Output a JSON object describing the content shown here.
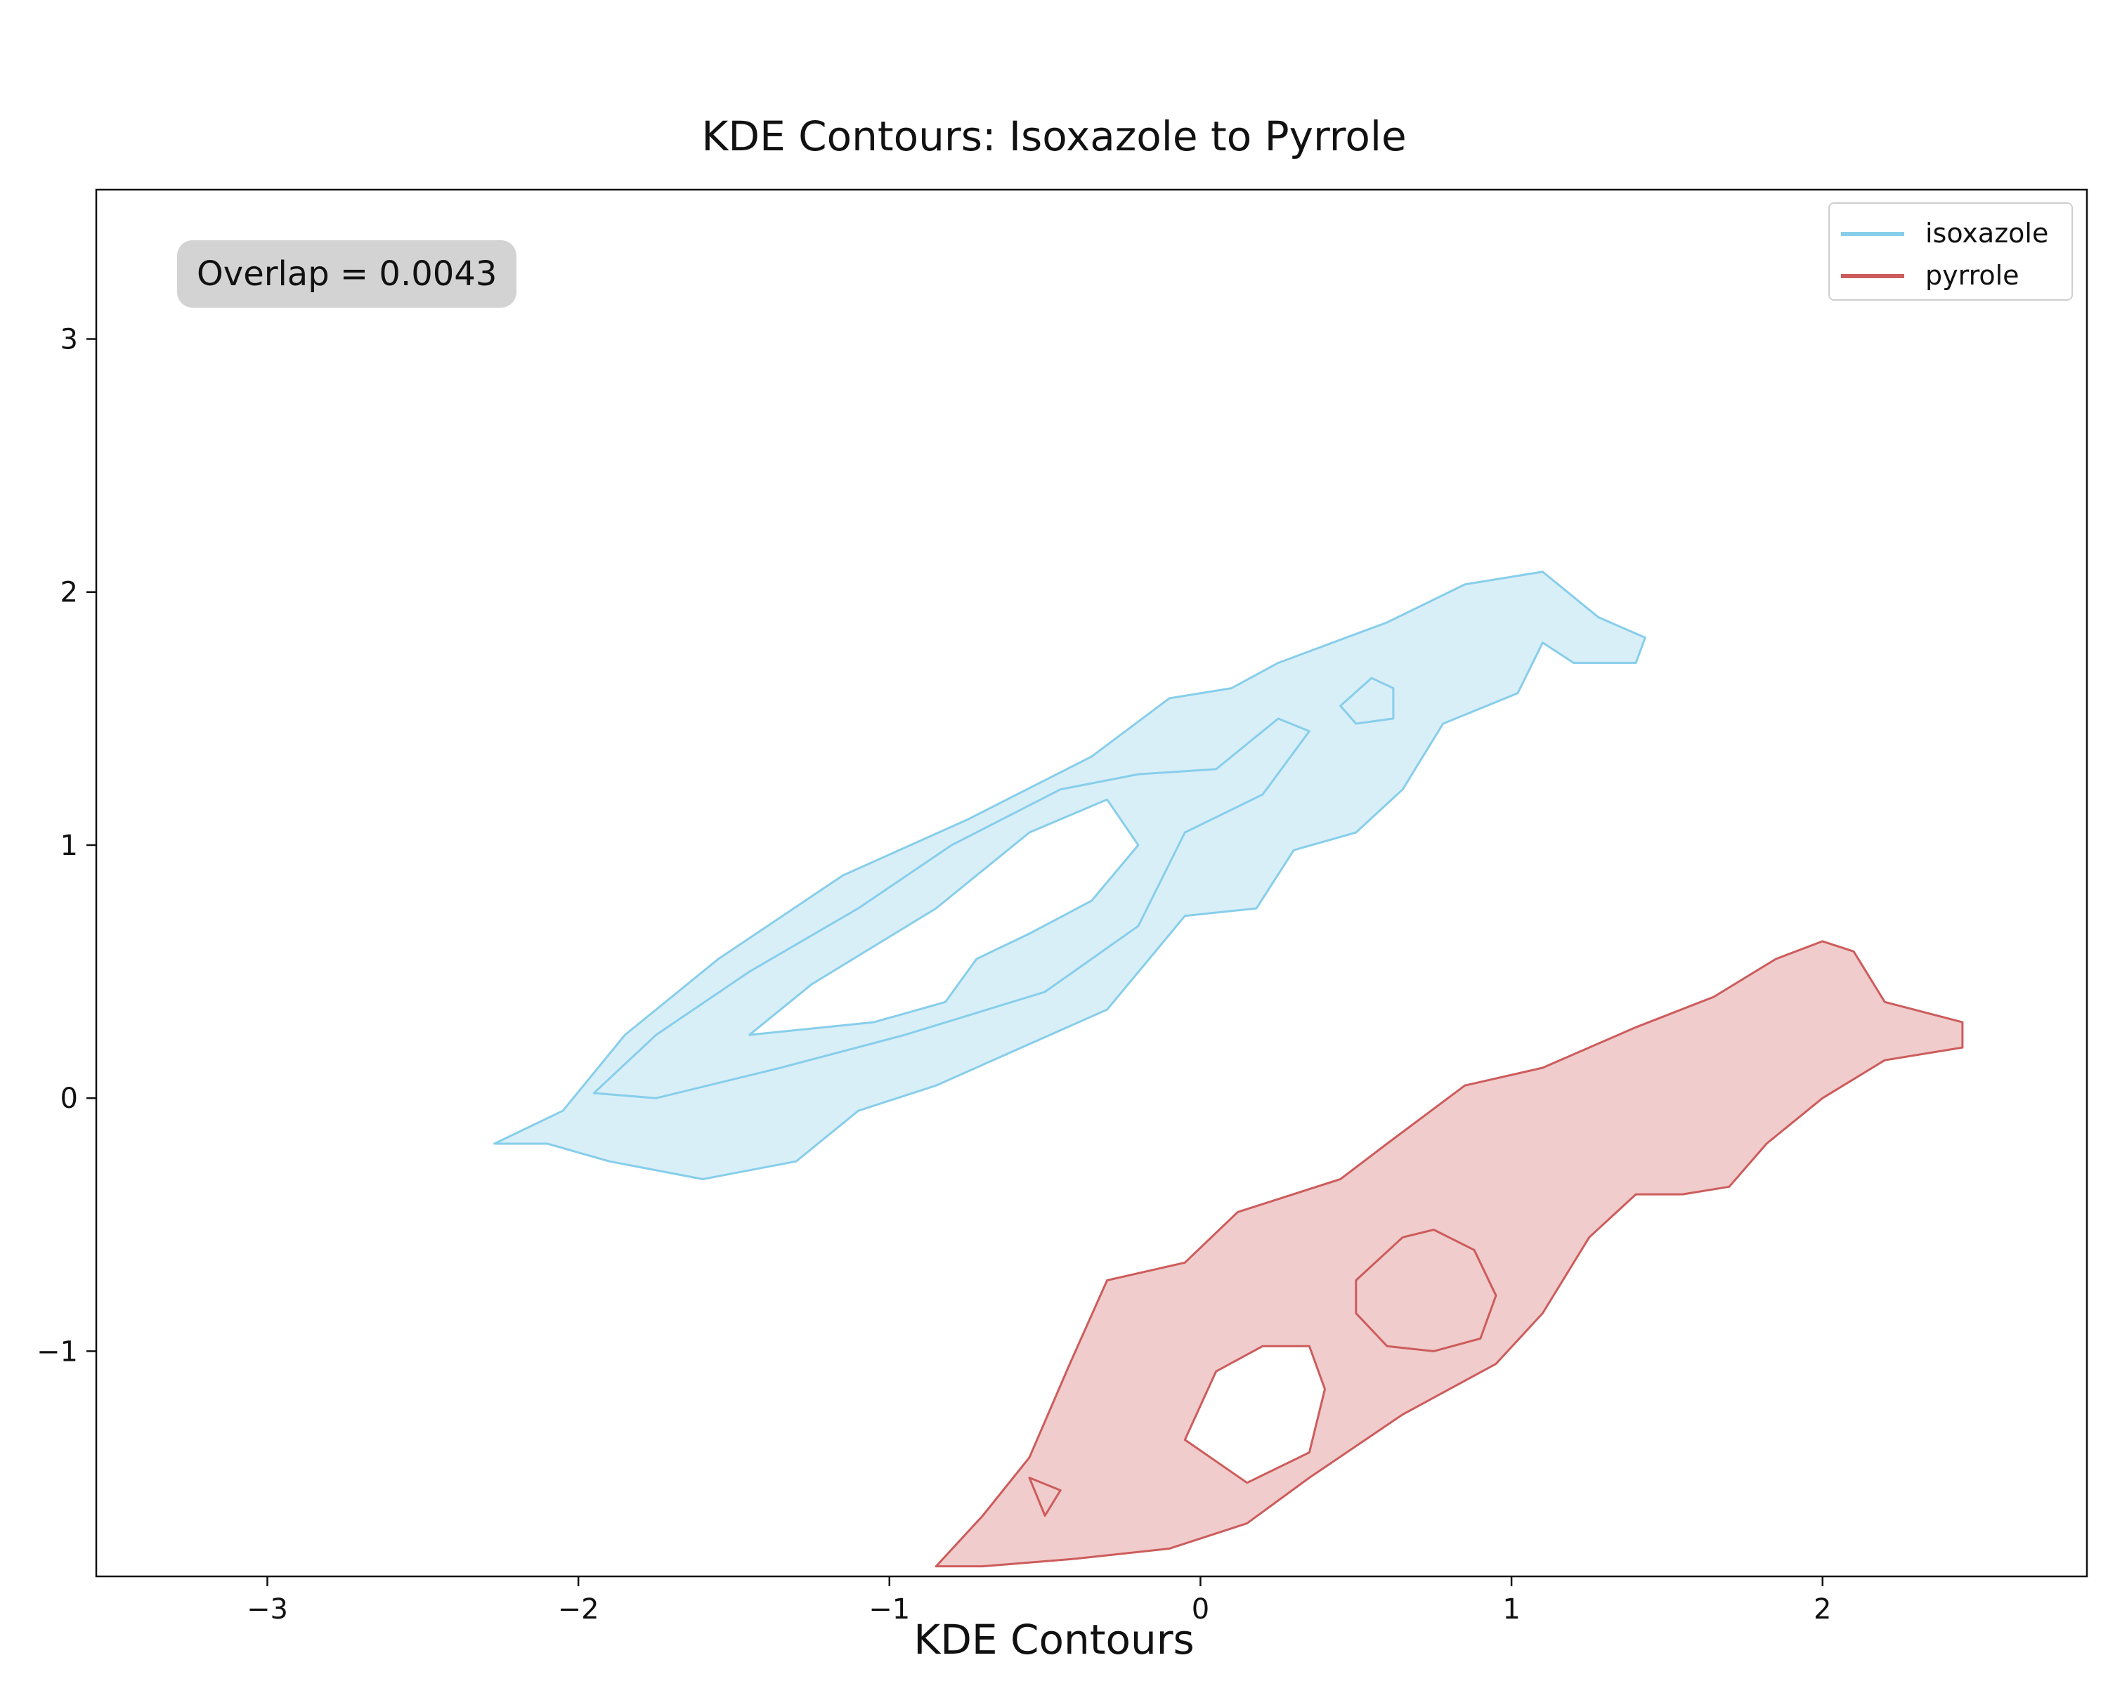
{
  "chart_data": {
    "type": "contour",
    "title": "KDE Contours: Isoxazole to Pyrrole",
    "xlabel": "KDE Contours",
    "ylabel": "",
    "xlim": [
      -3.55,
      2.85
    ],
    "ylim": [
      -1.89,
      3.59
    ],
    "xticks": [
      -3,
      -2,
      -1,
      0,
      1,
      2
    ],
    "yticks": [
      -1,
      0,
      1,
      2,
      3
    ],
    "xtick_labels": [
      "−3",
      "−2",
      "−1",
      "0",
      "1",
      "2"
    ],
    "ytick_labels": [
      "−1",
      "0",
      "1",
      "2",
      "3"
    ],
    "grid": false,
    "legend_position": "top-right",
    "annotation": "Overlap = 0.0043",
    "series": [
      {
        "name": "isoxazole",
        "color": "#87ceeb",
        "fill": "#d9eff8",
        "outer_contour": [
          [
            -2.27,
            -0.18
          ],
          [
            -2.05,
            -0.05
          ],
          [
            -1.85,
            0.25
          ],
          [
            -1.55,
            0.55
          ],
          [
            -1.15,
            0.88
          ],
          [
            -0.75,
            1.1
          ],
          [
            -0.35,
            1.35
          ],
          [
            -0.1,
            1.58
          ],
          [
            0.1,
            1.62
          ],
          [
            0.25,
            1.72
          ],
          [
            0.6,
            1.88
          ],
          [
            0.85,
            2.03
          ],
          [
            1.1,
            2.08
          ],
          [
            1.28,
            1.9
          ],
          [
            1.43,
            1.82
          ],
          [
            1.4,
            1.72
          ],
          [
            1.2,
            1.72
          ],
          [
            1.1,
            1.8
          ],
          [
            1.02,
            1.6
          ],
          [
            0.78,
            1.48
          ],
          [
            0.65,
            1.22
          ],
          [
            0.5,
            1.05
          ],
          [
            0.3,
            0.98
          ],
          [
            0.18,
            0.75
          ],
          [
            -0.05,
            0.72
          ],
          [
            -0.3,
            0.35
          ],
          [
            -0.85,
            0.05
          ],
          [
            -1.1,
            -0.05
          ],
          [
            -1.3,
            -0.25
          ],
          [
            -1.6,
            -0.32
          ],
          [
            -1.9,
            -0.25
          ],
          [
            -2.1,
            -0.18
          ],
          [
            -2.27,
            -0.18
          ]
        ],
        "inner_contours": [
          [
            [
              -1.45,
              0.25
            ],
            [
              -1.25,
              0.45
            ],
            [
              -0.85,
              0.75
            ],
            [
              -0.55,
              1.05
            ],
            [
              -0.3,
              1.18
            ],
            [
              -0.2,
              1.0
            ],
            [
              -0.35,
              0.78
            ],
            [
              -0.55,
              0.65
            ],
            [
              -0.72,
              0.55
            ],
            [
              -0.82,
              0.38
            ],
            [
              -1.05,
              0.3
            ],
            [
              -1.45,
              0.25
            ]
          ],
          [
            [
              0.45,
              1.55
            ],
            [
              0.55,
              1.66
            ],
            [
              0.62,
              1.62
            ],
            [
              0.62,
              1.5
            ],
            [
              0.5,
              1.48
            ],
            [
              0.45,
              1.55
            ]
          ],
          [
            [
              -1.95,
              0.02
            ],
            [
              -1.75,
              0.25
            ],
            [
              -1.45,
              0.5
            ],
            [
              -1.1,
              0.75
            ],
            [
              -0.8,
              1.0
            ],
            [
              -0.45,
              1.22
            ],
            [
              -0.2,
              1.28
            ],
            [
              0.05,
              1.3
            ],
            [
              0.25,
              1.5
            ],
            [
              0.35,
              1.45
            ],
            [
              0.2,
              1.2
            ],
            [
              -0.05,
              1.05
            ],
            [
              -0.2,
              0.68
            ],
            [
              -0.5,
              0.42
            ],
            [
              -0.95,
              0.25
            ],
            [
              -1.35,
              0.12
            ],
            [
              -1.75,
              0.0
            ],
            [
              -1.95,
              0.02
            ]
          ]
        ]
      },
      {
        "name": "pyrrole",
        "color": "#cd5c5c",
        "fill": "#f0cccc",
        "outer_contour": [
          [
            -0.85,
            -1.85
          ],
          [
            -0.7,
            -1.65
          ],
          [
            -0.55,
            -1.42
          ],
          [
            -0.42,
            -1.05
          ],
          [
            -0.3,
            -0.72
          ],
          [
            -0.05,
            -0.65
          ],
          [
            0.12,
            -0.45
          ],
          [
            0.45,
            -0.32
          ],
          [
            0.6,
            -0.18
          ],
          [
            0.85,
            0.05
          ],
          [
            1.1,
            0.12
          ],
          [
            1.4,
            0.28
          ],
          [
            1.65,
            0.4
          ],
          [
            1.85,
            0.55
          ],
          [
            2.0,
            0.62
          ],
          [
            2.1,
            0.58
          ],
          [
            2.2,
            0.38
          ],
          [
            2.45,
            0.3
          ],
          [
            2.45,
            0.2
          ],
          [
            2.2,
            0.15
          ],
          [
            2.0,
            0.0
          ],
          [
            1.82,
            -0.18
          ],
          [
            1.7,
            -0.35
          ],
          [
            1.55,
            -0.38
          ],
          [
            1.4,
            -0.38
          ],
          [
            1.25,
            -0.55
          ],
          [
            1.1,
            -0.85
          ],
          [
            0.95,
            -1.05
          ],
          [
            0.65,
            -1.25
          ],
          [
            0.35,
            -1.5
          ],
          [
            0.15,
            -1.68
          ],
          [
            -0.1,
            -1.78
          ],
          [
            -0.4,
            -1.82
          ],
          [
            -0.7,
            -1.85
          ],
          [
            -0.85,
            -1.85
          ]
        ],
        "inner_contours": [
          [
            [
              -0.05,
              -1.35
            ],
            [
              0.05,
              -1.08
            ],
            [
              0.2,
              -0.98
            ],
            [
              0.35,
              -0.98
            ],
            [
              0.4,
              -1.15
            ],
            [
              0.35,
              -1.4
            ],
            [
              0.15,
              -1.52
            ],
            [
              -0.05,
              -1.35
            ]
          ],
          [
            [
              0.5,
              -0.72
            ],
            [
              0.65,
              -0.55
            ],
            [
              0.75,
              -0.52
            ],
            [
              0.88,
              -0.6
            ],
            [
              0.95,
              -0.78
            ],
            [
              0.9,
              -0.95
            ],
            [
              0.75,
              -1.0
            ],
            [
              0.6,
              -0.98
            ],
            [
              0.5,
              -0.85
            ],
            [
              0.5,
              -0.72
            ]
          ],
          [
            [
              -0.55,
              -1.5
            ],
            [
              -0.5,
              -1.65
            ],
            [
              -0.45,
              -1.55
            ],
            [
              -0.55,
              -1.5
            ]
          ]
        ]
      }
    ]
  }
}
